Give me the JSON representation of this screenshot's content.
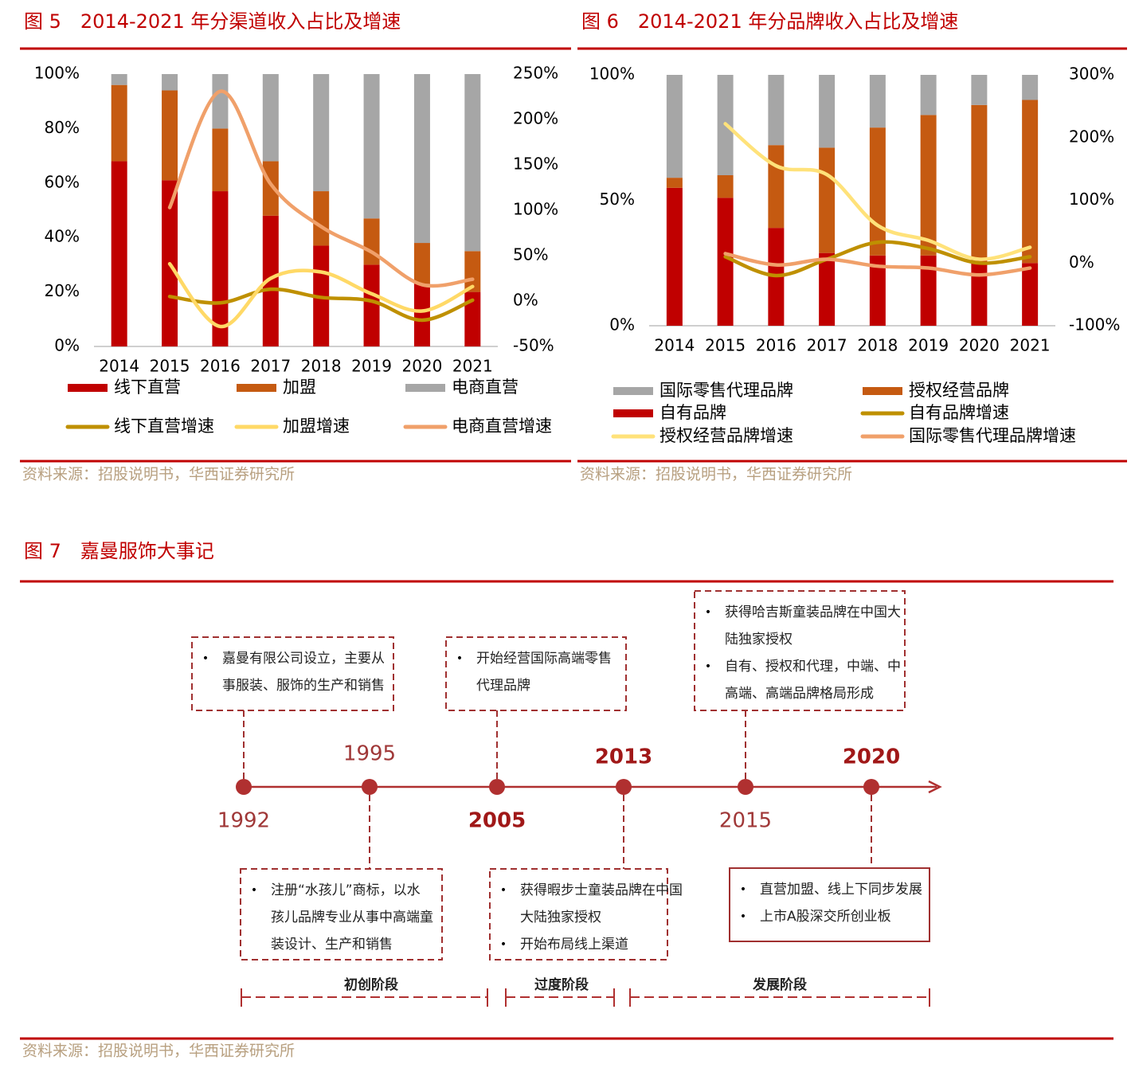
{
  "chart_data": [
    {
      "type": "combo",
      "title": "图 5　2014-2021 年分渠道收入占比及增速",
      "categories": [
        "2014",
        "2015",
        "2016",
        "2017",
        "2018",
        "2019",
        "2020",
        "2021"
      ],
      "ylim": [
        0,
        100
      ],
      "yticks": [
        {
          "value": 0,
          "label": "0%"
        },
        {
          "value": 20,
          "label": "20%"
        },
        {
          "value": 40,
          "label": "40%"
        },
        {
          "value": 60,
          "label": "60%"
        },
        {
          "value": 80,
          "label": "80%"
        },
        {
          "value": 100,
          "label": "100%"
        }
      ],
      "y2lim": [
        -50,
        250
      ],
      "y2ticks": [
        {
          "value": -50,
          "label": "-50%"
        },
        {
          "value": 0,
          "label": "0%"
        },
        {
          "value": 50,
          "label": "50%"
        },
        {
          "value": 100,
          "label": "100%"
        },
        {
          "value": 150,
          "label": "150%"
        },
        {
          "value": 200,
          "label": "200%"
        },
        {
          "value": 250,
          "label": "250%"
        }
      ],
      "series": [
        {
          "name": "线下直营",
          "type": "bar",
          "color": "#c00000",
          "values": [
            68,
            61,
            57,
            48,
            37,
            30,
            23,
            20
          ]
        },
        {
          "name": "加盟",
          "type": "bar",
          "color": "#c55a11",
          "values": [
            28,
            33,
            23,
            20,
            20,
            17,
            15,
            15
          ]
        },
        {
          "name": "电商直营",
          "type": "bar",
          "color": "#a6a6a6",
          "values": [
            4,
            6,
            20,
            32,
            43,
            53,
            62,
            65
          ]
        },
        {
          "name": "线下直营增速",
          "type": "line",
          "axis": "y2",
          "color": "#bf9000",
          "values": [
            null,
            5,
            -2,
            13,
            4,
            0,
            -21,
            1
          ]
        },
        {
          "name": "加盟增速",
          "type": "line",
          "axis": "y2",
          "color": "#ffd966",
          "values": [
            null,
            41,
            -28,
            25,
            32,
            8,
            -11,
            16
          ]
        },
        {
          "name": "电商直营增速",
          "type": "line",
          "axis": "y2",
          "color": "#f0a06a",
          "values": [
            null,
            103,
            231,
            129,
            82,
            54,
            18,
            24
          ]
        }
      ],
      "source": "资料来源：招股说明书，华西证券研究所"
    },
    {
      "type": "combo",
      "title": "图 6　2014-2021 年分品牌收入占比及增速",
      "categories": [
        "2014",
        "2015",
        "2016",
        "2017",
        "2018",
        "2019",
        "2020",
        "2021"
      ],
      "ylim": [
        0,
        100
      ],
      "yticks": [
        {
          "value": 0,
          "label": "0%"
        },
        {
          "value": 50,
          "label": "50%"
        },
        {
          "value": 100,
          "label": "100%"
        }
      ],
      "y2lim": [
        -100,
        300
      ],
      "y2ticks": [
        {
          "value": -100,
          "label": "-100%"
        },
        {
          "value": 0,
          "label": "0%"
        },
        {
          "value": 100,
          "label": "100%"
        },
        {
          "value": 200,
          "label": "200%"
        },
        {
          "value": 300,
          "label": "300%"
        }
      ],
      "series": [
        {
          "name": "自有品牌",
          "type": "bar",
          "color": "#c00000",
          "values": [
            55,
            51,
            39,
            29,
            28,
            28,
            26,
            25
          ]
        },
        {
          "name": "授权经营品牌",
          "type": "bar",
          "color": "#c55a11",
          "values": [
            4,
            9,
            33,
            42,
            51,
            56,
            62,
            65
          ]
        },
        {
          "name": "国际零售代理品牌",
          "type": "bar",
          "color": "#a6a6a6",
          "values": [
            41,
            40,
            28,
            29,
            21,
            16,
            12,
            10
          ]
        },
        {
          "name": "自有品牌增速",
          "type": "line",
          "axis": "y2",
          "color": "#bf9000",
          "values": [
            null,
            10,
            -20,
            6,
            33,
            23,
            0,
            10
          ]
        },
        {
          "name": "授权经营品牌增速",
          "type": "line",
          "axis": "y2",
          "color": "#ffe27a",
          "values": [
            null,
            222,
            155,
            141,
            60,
            36,
            6,
            25
          ]
        },
        {
          "name": "国际零售代理品牌增速",
          "type": "line",
          "axis": "y2",
          "color": "#f0a06a",
          "values": [
            null,
            15,
            -3,
            6,
            -5,
            -8,
            -19,
            -8
          ]
        }
      ],
      "source": "资料来源：招股说明书，华西证券研究所"
    }
  ],
  "figure7": {
    "title": "图 7　嘉曼服饰大事记",
    "milestones": [
      {
        "year": "1992",
        "items": [
          [
            "嘉曼有限公司设立，主要从",
            "事服装、服饰的生产和销售"
          ]
        ]
      },
      {
        "year": "1995",
        "items": [
          [
            "注册“水孩儿”商标，以水",
            "孩儿品牌专业从事中高端童",
            "装设计、生产和销售"
          ]
        ]
      },
      {
        "year": "2005",
        "items": [
          [
            "开始经营国际高端零售",
            "代理品牌"
          ]
        ]
      },
      {
        "year": "2013",
        "items": [
          [
            "获得暇步士童装品牌在中国",
            "大陆独家授权"
          ],
          [
            "开始布局线上渠道"
          ]
        ]
      },
      {
        "year": "2015",
        "items": [
          [
            "获得哈吉斯童装品牌在中国大",
            "陆独家授权"
          ],
          [
            "自有、授权和代理，中端、中",
            "高端、高端品牌格局形成"
          ]
        ]
      },
      {
        "year": "2020",
        "items": [
          [
            "直营加盟、线上下同步发展"
          ],
          [
            "上市A股深交所创业板"
          ]
        ]
      }
    ],
    "phases": [
      "初创阶段",
      "过度阶段",
      "发展阶段"
    ],
    "source": "资料来源：招股说明书，华西证券研究所"
  }
}
